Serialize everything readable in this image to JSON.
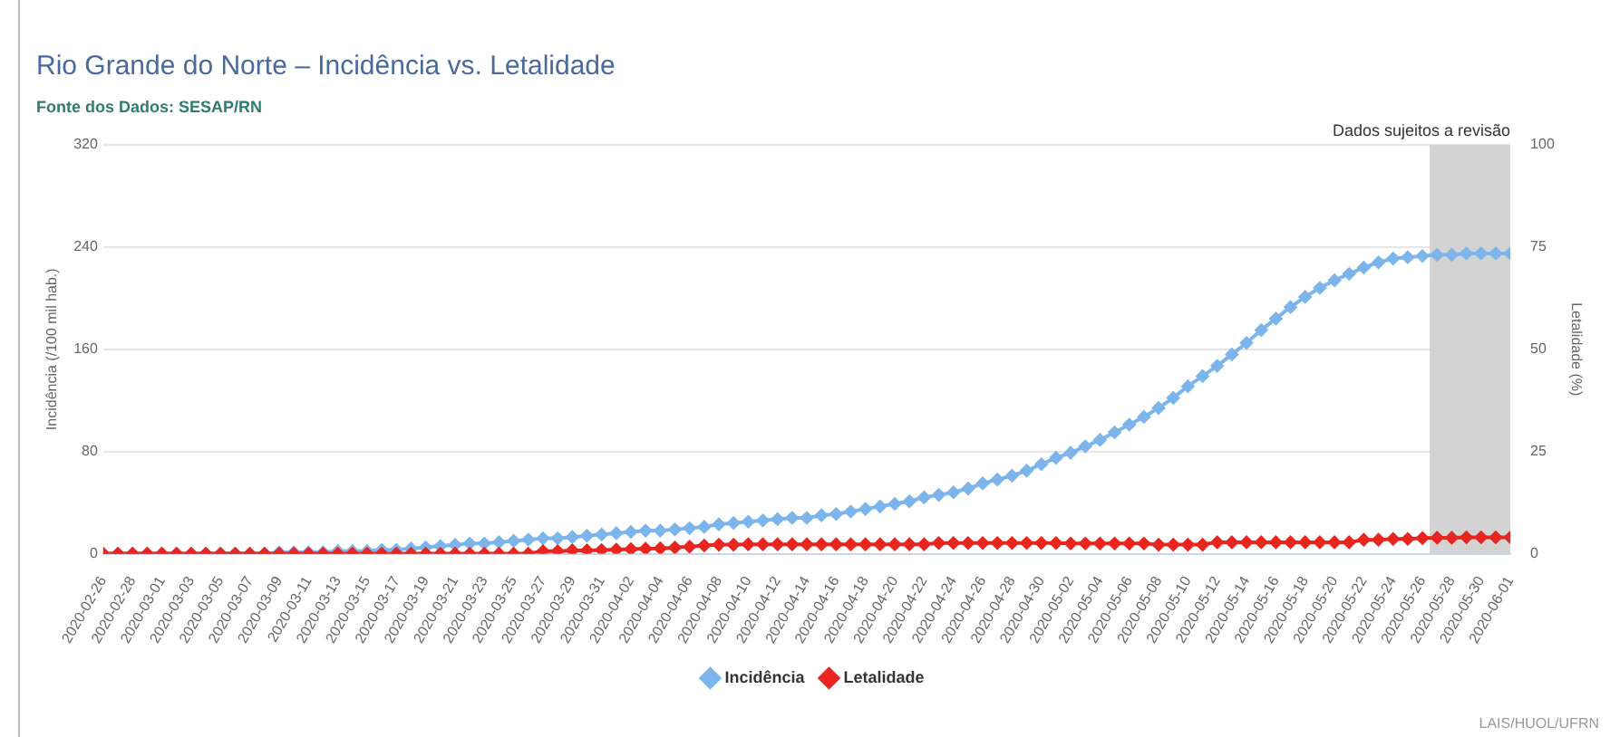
{
  "chart_data": {
    "type": "line",
    "title": "Rio Grande do Norte – Incidência vs. Letalidade",
    "subtitle": "Fonte dos Dados: SESAP/RN",
    "ylabel": "Incidência (/100 mil hab.)",
    "y2label": "Letalidade (%)",
    "annotations": [
      "LAIS/HUOL/UFRN"
    ],
    "x": [
      "2020-02-26",
      "2020-02-27",
      "2020-02-28",
      "2020-02-29",
      "2020-03-01",
      "2020-03-02",
      "2020-03-03",
      "2020-03-04",
      "2020-03-05",
      "2020-03-06",
      "2020-03-07",
      "2020-03-08",
      "2020-03-09",
      "2020-03-10",
      "2020-03-11",
      "2020-03-12",
      "2020-03-13",
      "2020-03-14",
      "2020-03-15",
      "2020-03-16",
      "2020-03-17",
      "2020-03-18",
      "2020-03-19",
      "2020-03-20",
      "2020-03-21",
      "2020-03-22",
      "2020-03-23",
      "2020-03-24",
      "2020-03-25",
      "2020-03-26",
      "2020-03-27",
      "2020-03-28",
      "2020-03-29",
      "2020-03-30",
      "2020-03-31",
      "2020-04-01",
      "2020-04-02",
      "2020-04-03",
      "2020-04-04",
      "2020-04-05",
      "2020-04-06",
      "2020-04-07",
      "2020-04-08",
      "2020-04-09",
      "2020-04-10",
      "2020-04-11",
      "2020-04-12",
      "2020-04-13",
      "2020-04-14",
      "2020-04-15",
      "2020-04-16",
      "2020-04-17",
      "2020-04-18",
      "2020-04-19",
      "2020-04-20",
      "2020-04-21",
      "2020-04-22",
      "2020-04-23",
      "2020-04-24",
      "2020-04-25",
      "2020-04-26",
      "2020-04-27",
      "2020-04-28",
      "2020-04-29",
      "2020-04-30",
      "2020-05-01",
      "2020-05-02",
      "2020-05-03",
      "2020-05-04",
      "2020-05-05",
      "2020-05-06",
      "2020-05-07",
      "2020-05-08",
      "2020-05-09",
      "2020-05-10",
      "2020-05-11",
      "2020-05-12",
      "2020-05-13",
      "2020-05-14",
      "2020-05-15",
      "2020-05-16",
      "2020-05-17",
      "2020-05-18",
      "2020-05-19",
      "2020-05-20",
      "2020-05-21",
      "2020-05-22",
      "2020-05-23",
      "2020-05-24",
      "2020-05-25",
      "2020-05-26",
      "2020-05-27",
      "2020-05-28",
      "2020-05-29",
      "2020-05-30",
      "2020-05-31",
      "2020-06-01"
    ],
    "series": [
      {
        "name": "Incidência",
        "color": "#7cb5ec",
        "values": [
          0,
          0,
          0,
          0,
          0,
          0,
          0,
          0,
          0,
          0,
          0,
          0,
          1,
          1,
          1,
          1,
          2,
          2,
          2,
          3,
          3,
          4,
          5,
          6,
          7,
          8,
          8,
          9,
          10,
          11,
          12,
          12,
          13,
          14,
          15,
          16,
          17,
          18,
          18,
          19,
          20,
          21,
          23,
          24,
          25,
          26,
          27,
          28,
          28,
          30,
          31,
          33,
          35,
          37,
          39,
          41,
          44,
          46,
          48,
          51,
          55,
          58,
          61,
          65,
          70,
          75,
          79,
          84,
          89,
          95,
          101,
          107,
          114,
          122,
          131,
          139,
          147,
          156,
          165,
          175,
          184,
          193,
          201,
          208,
          214,
          219,
          224,
          228,
          231,
          232,
          233,
          234,
          234,
          235,
          235,
          235,
          235
        ]
      },
      {
        "name": "Letalidade",
        "color": "#e8251f",
        "axis": "y2",
        "values": [
          0,
          0,
          0,
          0,
          0,
          0,
          0,
          0,
          0,
          0,
          0,
          0,
          0,
          0,
          0,
          0,
          0,
          0,
          0,
          0,
          0,
          0,
          0,
          0,
          0,
          0,
          0,
          0,
          0,
          0,
          0.6,
          0.6,
          0.8,
          0.8,
          0.9,
          1.0,
          1.1,
          1.2,
          1.3,
          1.5,
          1.7,
          2.0,
          2.2,
          2.2,
          2.3,
          2.3,
          2.3,
          2.3,
          2.3,
          2.3,
          2.3,
          2.3,
          2.3,
          2.3,
          2.3,
          2.3,
          2.3,
          2.6,
          2.6,
          2.6,
          2.6,
          2.6,
          2.6,
          2.6,
          2.6,
          2.6,
          2.5,
          2.5,
          2.5,
          2.5,
          2.5,
          2.5,
          2.2,
          2.2,
          2.2,
          2.2,
          2.8,
          2.8,
          2.8,
          2.8,
          2.8,
          2.8,
          2.8,
          2.8,
          2.8,
          2.8,
          3.4,
          3.4,
          3.6,
          3.6,
          3.8,
          3.9,
          3.9,
          4.0,
          4.0,
          4.0,
          4.0
        ]
      }
    ],
    "xlim": [
      "2020-02-26",
      "2020-06-01"
    ],
    "xticks": [
      "2020-02-26",
      "2020-02-28",
      "2020-03-01",
      "2020-03-03",
      "2020-03-05",
      "2020-03-07",
      "2020-03-09",
      "2020-03-11",
      "2020-03-13",
      "2020-03-15",
      "2020-03-17",
      "2020-03-19",
      "2020-03-21",
      "2020-03-23",
      "2020-03-25",
      "2020-03-27",
      "2020-03-29",
      "2020-03-31",
      "2020-04-02",
      "2020-04-04",
      "2020-04-06",
      "2020-04-08",
      "2020-04-10",
      "2020-04-12",
      "2020-04-14",
      "2020-04-16",
      "2020-04-18",
      "2020-04-20",
      "2020-04-22",
      "2020-04-24",
      "2020-04-26",
      "2020-04-28",
      "2020-04-30",
      "2020-05-02",
      "2020-05-04",
      "2020-05-06",
      "2020-05-08",
      "2020-05-10",
      "2020-05-12",
      "2020-05-14",
      "2020-05-16",
      "2020-05-18",
      "2020-05-20",
      "2020-05-22",
      "2020-05-24",
      "2020-05-26",
      "2020-05-28",
      "2020-05-30",
      "2020-06-01"
    ],
    "ylim": [
      0,
      320
    ],
    "yticks": [
      0,
      80,
      160,
      240,
      320
    ],
    "y2lim": [
      0,
      100
    ],
    "y2ticks": [
      0,
      25,
      50,
      75,
      100
    ],
    "bands": [
      {
        "axis": "x",
        "from": "2020-05-26T12:00",
        "to": "2020-06-01",
        "label": "Dados sujeitos a revisão",
        "color": "#d3d3d3"
      }
    ],
    "grid": "y",
    "legend": "bottom",
    "marker": "diamond",
    "line_style": "solid"
  }
}
